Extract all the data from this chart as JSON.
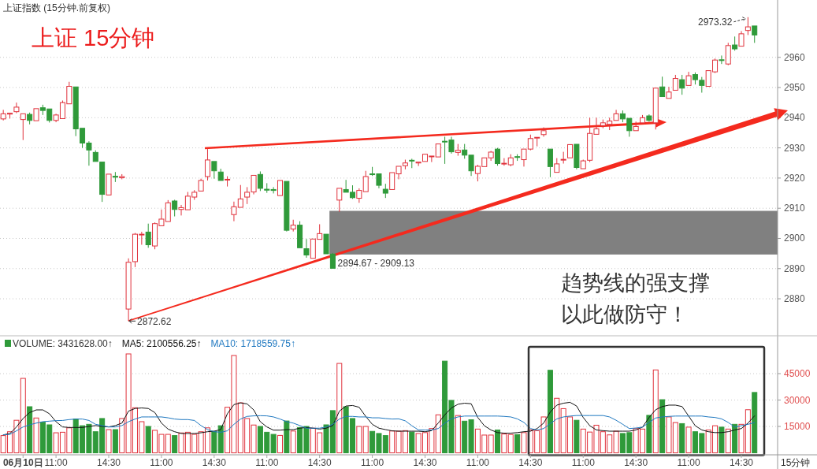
{
  "chart_data": [
    {
      "type": "candlestick",
      "title": "上证指数 (15分钟.前复权)",
      "subtitle": "上证 15分钟",
      "categories": [
        null,
        null,
        null,
        null,
        null,
        null,
        null,
        null,
        null,
        null,
        null,
        null,
        null,
        null,
        null,
        null,
        null,
        null,
        null,
        null,
        null,
        null,
        null,
        null,
        null,
        null,
        null,
        null,
        null,
        null,
        null,
        null,
        null,
        null,
        null,
        null,
        null,
        null,
        null,
        null,
        null,
        null,
        null,
        null,
        null,
        null,
        null,
        null,
        null,
        null,
        null,
        null,
        null,
        null,
        null,
        null,
        null,
        null,
        null,
        null,
        null,
        null,
        null,
        null,
        null,
        null,
        null,
        null,
        null,
        null,
        null,
        null,
        null,
        null,
        null,
        null,
        null,
        null,
        null,
        null,
        null,
        null,
        null,
        null,
        null,
        null,
        null,
        null,
        null,
        null,
        null,
        null,
        null,
        null,
        null,
        null,
        null,
        null,
        null,
        null,
        null,
        null,
        null,
        null,
        null,
        null,
        null,
        null,
        null,
        null,
        null,
        null,
        null,
        null,
        null,
        null,
        null,
        null
      ],
      "ohlc": [
        [
          2939.6,
          2942.6,
          2939.1,
          2941.3
        ],
        [
          2941.2,
          2941.7,
          2939.7,
          2941.5
        ],
        [
          2942.0,
          2945.0,
          2941.5,
          2943.5
        ],
        [
          2939.4,
          2941.5,
          2932.6,
          2941.3
        ],
        [
          2941.1,
          2941.7,
          2937.8,
          2939.1
        ],
        [
          2939.0,
          2943.2,
          2938.8,
          2943.0
        ],
        [
          2943.3,
          2944.3,
          2940.9,
          2942.4
        ],
        [
          2942.9,
          2943.0,
          2938.4,
          2939.1
        ],
        [
          2939.1,
          2941.3,
          2938.5,
          2940.9
        ],
        [
          2939.7,
          2945.7,
          2939.6,
          2945.0
        ],
        [
          2944.6,
          2951.9,
          2944.6,
          2950.4
        ],
        [
          2950.2,
          2950.2,
          2933.9,
          2936.3
        ],
        [
          2936.5,
          2936.5,
          2930.0,
          2931.6
        ],
        [
          2931.6,
          2932.2,
          2924.1,
          2929.3
        ],
        [
          2928.5,
          2929.2,
          2925.3,
          2925.5
        ],
        [
          2925.3,
          2925.3,
          2912.1,
          2914.6
        ],
        [
          2914.4,
          2921.3,
          2914.4,
          2921.3
        ],
        [
          2920.6,
          2922.0,
          2918.7,
          2920.3
        ],
        [
          2920.1,
          2921.3,
          2919.6,
          2920.5
        ],
        [
          2876.6,
          2893.4,
          2872.62,
          2892.1
        ],
        [
          2892.3,
          2901.8,
          2890.5,
          2901.4
        ],
        [
          2901.2,
          2902.2,
          2897.9,
          2901.4
        ],
        [
          2902.1,
          2904.9,
          2896.9,
          2897.9
        ],
        [
          2897.5,
          2905.3,
          2896.4,
          2904.9
        ],
        [
          2904.2,
          2909.6,
          2904.2,
          2906.4
        ],
        [
          2905.6,
          2912.7,
          2905.6,
          2911.8
        ],
        [
          2912.4,
          2912.8,
          2907.3,
          2909.6
        ],
        [
          2909.6,
          2911.1,
          2907.6,
          2910.2
        ],
        [
          2909.5,
          2915.4,
          2909.2,
          2914.0
        ],
        [
          2913.7,
          2916.0,
          2912.8,
          2915.3
        ],
        [
          2915.7,
          2919.8,
          2915.7,
          2919.2
        ],
        [
          2920.5,
          2929.6,
          2919.2,
          2926.0
        ],
        [
          2925.5,
          2925.7,
          2919.8,
          2922.4
        ],
        [
          2922.0,
          2923.1,
          2918.9,
          2919.2
        ],
        [
          2919.5,
          2920.6,
          2917.2,
          2919.6
        ],
        [
          2907.9,
          2912.2,
          2905.7,
          2910.5
        ],
        [
          2910.3,
          2917.7,
          2910.3,
          2913.1
        ],
        [
          2913.7,
          2917.0,
          2911.4,
          2915.3
        ],
        [
          2915.4,
          2920.9,
          2914.6,
          2920.9
        ],
        [
          2921.2,
          2922.2,
          2915.7,
          2916.6
        ],
        [
          2916.3,
          2918.3,
          2915.1,
          2916.0
        ],
        [
          2916.2,
          2917.0,
          2914.9,
          2915.9
        ],
        [
          2914.2,
          2919.2,
          2914.2,
          2919.2
        ],
        [
          2918.9,
          2918.9,
          2902.3,
          2902.7
        ],
        [
          2903.1,
          2906.2,
          2902.3,
          2904.4
        ],
        [
          2904.4,
          2905.7,
          2896.9,
          2896.9
        ],
        [
          2896.6,
          2899.8,
          2893.6,
          2894.5
        ],
        [
          2893.4,
          2899.8,
          2893.4,
          2899.8
        ],
        [
          2899.7,
          2904.7,
          2899.7,
          2901.6
        ],
        [
          2901.4,
          2901.4,
          2894.6,
          2894.9
        ],
        [
          2894.8,
          2895.2,
          2890.1,
          2890.1
        ],
        [
          2912.7,
          2916.6,
          2908.8,
          2916.6
        ],
        [
          2916.2,
          2919.4,
          2915.3,
          2915.3
        ],
        [
          2915.3,
          2917.6,
          2913.1,
          2913.5
        ],
        [
          2913.3,
          2916.6,
          2911.8,
          2915.9
        ],
        [
          2915.5,
          2922.4,
          2915.5,
          2920.5
        ],
        [
          2921.4,
          2923.7,
          2920.7,
          2921.2
        ],
        [
          2921.4,
          2921.4,
          2916.6,
          2917.6
        ],
        [
          2916.3,
          2918.1,
          2913.4,
          2915.0
        ],
        [
          2916.2,
          2922.1,
          2916.2,
          2921.8
        ],
        [
          2921.4,
          2923.9,
          2919.6,
          2923.9
        ],
        [
          2924.1,
          2926.1,
          2922.9,
          2925.0
        ],
        [
          2925.9,
          2926.4,
          2923.3,
          2925.7
        ],
        [
          2925.0,
          2925.3,
          2924.0,
          2925.3
        ],
        [
          2925.5,
          2927.9,
          2925.5,
          2927.9
        ],
        [
          2927.2,
          2927.4,
          2925.3,
          2927.3
        ],
        [
          2927.0,
          2931.3,
          2926.7,
          2931.3
        ],
        [
          2932.2,
          2933.7,
          2924.7,
          2932.1
        ],
        [
          2932.6,
          2933.7,
          2928.1,
          2928.7
        ],
        [
          2928.5,
          2931.3,
          2927.4,
          2929.2
        ],
        [
          2929.3,
          2931.3,
          2926.4,
          2927.6
        ],
        [
          2927.6,
          2927.6,
          2920.7,
          2922.4
        ],
        [
          2921.5,
          2924.4,
          2918.9,
          2923.9
        ],
        [
          2923.8,
          2926.7,
          2923.8,
          2926.7
        ],
        [
          2926.7,
          2929.0,
          2925.7,
          2928.6
        ],
        [
          2929.6,
          2930.0,
          2924.1,
          2924.8
        ],
        [
          2924.7,
          2926.6,
          2924.1,
          2924.9
        ],
        [
          2924.4,
          2927.9,
          2923.9,
          2926.7
        ],
        [
          2927.1,
          2927.9,
          2925.7,
          2926.9
        ],
        [
          2926.1,
          2929.6,
          2923.8,
          2929.6
        ],
        [
          2929.6,
          2934.4,
          2929.2,
          2933.1
        ],
        [
          2933.4,
          2933.7,
          2930.5,
          2933.5
        ],
        [
          2934.4,
          2936.8,
          2933.7,
          2935.7
        ],
        [
          2929.6,
          2929.6,
          2920.3,
          2923.8
        ],
        [
          2921.9,
          2926.6,
          2921.9,
          2924.7
        ],
        [
          2926.1,
          2928.7,
          2924.8,
          2926.2
        ],
        [
          2926.7,
          2931.3,
          2926.7,
          2931.1
        ],
        [
          2931.2,
          2931.2,
          2922.9,
          2923.5
        ],
        [
          2923.1,
          2926.1,
          2923.1,
          2925.7
        ],
        [
          2925.9,
          2940.0,
          2925.3,
          2934.8
        ],
        [
          2934.5,
          2940.0,
          2934.5,
          2936.3
        ],
        [
          2937.4,
          2939.4,
          2936.5,
          2938.3
        ],
        [
          2937.8,
          2940.0,
          2935.9,
          2938.9
        ],
        [
          2939.1,
          2942.6,
          2939.1,
          2941.3
        ],
        [
          2941.3,
          2942.4,
          2938.5,
          2939.6
        ],
        [
          2939.8,
          2939.8,
          2933.7,
          2935.7
        ],
        [
          2935.7,
          2938.7,
          2935.7,
          2937.1
        ],
        [
          2938.3,
          2940.9,
          2938.3,
          2940.0
        ],
        [
          2940.6,
          2941.1,
          2938.7,
          2939.1
        ],
        [
          2938.3,
          2949.8,
          2936.1,
          2949.8
        ],
        [
          2950.2,
          2953.6,
          2947.0,
          2947.0
        ],
        [
          2946.4,
          2950.2,
          2946.4,
          2948.5
        ],
        [
          2949.1,
          2954.2,
          2949.1,
          2953.0
        ],
        [
          2952.6,
          2954.2,
          2947.6,
          2949.8
        ],
        [
          2950.7,
          2955.2,
          2950.7,
          2953.9
        ],
        [
          2954.3,
          2955.0,
          2951.0,
          2952.6
        ],
        [
          2952.4,
          2953.5,
          2948.3,
          2950.7
        ],
        [
          2950.4,
          2955.6,
          2950.4,
          2955.6
        ],
        [
          2955.2,
          2959.6,
          2954.8,
          2959.1
        ],
        [
          2959.2,
          2960.6,
          2957.8,
          2959.0
        ],
        [
          2957.8,
          2964.8,
          2957.4,
          2963.9
        ],
        [
          2964.1,
          2966.9,
          2962.2,
          2962.8
        ],
        [
          2963.7,
          2968.7,
          2963.5,
          2967.8
        ],
        [
          2968.9,
          2973.32,
          2967.4,
          2970.1
        ],
        [
          2970.4,
          2970.4,
          2964.8,
          2967.4
        ],
        null,
        null,
        null
      ],
      "colors": [
        "#e0323c",
        "#e0323c",
        "#e0323c",
        "#e0323c",
        "#2f9a3a",
        "#e0323c",
        "#2f9a3a",
        "#2f9a3a",
        "#e0323c",
        "#e0323c",
        "#e0323c",
        "#2f9a3a",
        "#2f9a3a",
        "#2f9a3a",
        "#2f9a3a",
        "#2f9a3a",
        "#e0323c",
        "#2f9a3a",
        "#e0323c",
        "#e0323c",
        "#e0323c",
        "#e0323c",
        "#2f9a3a",
        "#e0323c",
        "#e0323c",
        "#e0323c",
        "#2f9a3a",
        "#e0323c",
        "#e0323c",
        "#e0323c",
        "#e0323c",
        "#e0323c",
        "#2f9a3a",
        "#2f9a3a",
        "#e0323c",
        "#e0323c",
        "#e0323c",
        "#e0323c",
        "#e0323c",
        "#2f9a3a",
        "#2f9a3a",
        "#2f9a3a",
        "#e0323c",
        "#2f9a3a",
        "#e0323c",
        "#2f9a3a",
        "#2f9a3a",
        "#e0323c",
        "#e0323c",
        "#2f9a3a",
        "#2f9a3a",
        "#e0323c",
        "#2f9a3a",
        "#2f9a3a",
        "#e0323c",
        "#e0323c",
        "#2f9a3a",
        "#2f9a3a",
        "#2f9a3a",
        "#e0323c",
        "#e0323c",
        "#e0323c",
        "#2f9a3a",
        "#e0323c",
        "#e0323c",
        "#e0323c",
        "#e0323c",
        "#2f9a3a",
        "#2f9a3a",
        "#e0323c",
        "#2f9a3a",
        "#2f9a3a",
        "#e0323c",
        "#e0323c",
        "#e0323c",
        "#2f9a3a",
        "#e0323c",
        "#e0323c",
        "#2f9a3a",
        "#e0323c",
        "#e0323c",
        "#e0323c",
        "#e0323c",
        "#2f9a3a",
        "#e0323c",
        "#e0323c",
        "#e0323c",
        "#2f9a3a",
        "#e0323c",
        "#e0323c",
        "#e0323c",
        "#e0323c",
        "#e0323c",
        "#e0323c",
        "#2f9a3a",
        "#2f9a3a",
        "#e0323c",
        "#e0323c",
        "#2f9a3a",
        "#e0323c",
        "#2f9a3a",
        "#e0323c",
        "#e0323c",
        "#2f9a3a",
        "#e0323c",
        "#2f9a3a",
        "#2f9a3a",
        "#e0323c",
        "#e0323c",
        "#2f9a3a",
        "#e0323c",
        "#2f9a3a",
        "#e0323c",
        "#e0323c",
        "#2f9a3a",
        null,
        null,
        null
      ],
      "bands": [
        {
          "axis": "y",
          "from": 2894.67,
          "to": 2909.13,
          "label": "2894.67 - 2909.13",
          "color": "#808080"
        }
      ],
      "annotations": [
        "2872.62",
        "2973.32",
        "趋势线的强支撑",
        "以此做防守！"
      ],
      "ylim": [
        2868,
        2979
      ],
      "yticks": [
        2880,
        2890,
        2900,
        2910,
        2920,
        2930,
        2940,
        2950,
        2960
      ],
      "grid": "y",
      "tick_labels": "y"
    },
    {
      "type": "bar",
      "categories": [
        null,
        null,
        null,
        "06月10日",
        null,
        null,
        null,
        null,
        "11:00",
        null,
        null,
        null,
        null,
        null,
        null,
        null,
        "14:30",
        null,
        null,
        null,
        null,
        null,
        null,
        null,
        "11:00",
        null,
        null,
        null,
        null,
        null,
        null,
        null,
        "14:30",
        null,
        null,
        null,
        null,
        null,
        null,
        null,
        "11:00",
        null,
        null,
        null,
        null,
        null,
        null,
        null,
        "14:30",
        null,
        null,
        null,
        null,
        null,
        null,
        null,
        "11:00",
        null,
        null,
        null,
        null,
        null,
        null,
        null,
        "14:30",
        null,
        null,
        null,
        null,
        null,
        null,
        null,
        "11:00",
        null,
        null,
        null,
        null,
        null,
        null,
        null,
        "14:30",
        null,
        null,
        null,
        null,
        null,
        null,
        null,
        "11:00",
        null,
        null,
        null,
        null,
        null,
        null,
        null,
        "14:30",
        null,
        null,
        null,
        null,
        null,
        null,
        null,
        "11:00",
        null,
        null,
        null,
        null,
        null,
        null,
        null,
        "14:30",
        null,
        null,
        null,
        null,
        null
      ],
      "series": [
        {
          "name": "VOLUME: 3431628.00↑",
          "colors": [
            "#e0323c",
            "#e0323c",
            "#e0323c",
            "#e0323c",
            "#2f9a3a",
            "#e0323c",
            "#2f9a3a",
            "#2f9a3a",
            "#e0323c",
            "#e0323c",
            "#e0323c",
            "#2f9a3a",
            "#2f9a3a",
            "#2f9a3a",
            "#2f9a3a",
            "#2f9a3a",
            "#e0323c",
            "#2f9a3a",
            "#e0323c",
            "#e0323c",
            "#e0323c",
            "#e0323c",
            "#2f9a3a",
            "#e0323c",
            "#e0323c",
            "#e0323c",
            "#2f9a3a",
            "#e0323c",
            "#e0323c",
            "#e0323c",
            "#e0323c",
            "#e0323c",
            "#2f9a3a",
            "#2f9a3a",
            "#e0323c",
            "#e0323c",
            "#e0323c",
            "#e0323c",
            "#e0323c",
            "#2f9a3a",
            "#2f9a3a",
            "#2f9a3a",
            "#e0323c",
            "#2f9a3a",
            "#e0323c",
            "#2f9a3a",
            "#2f9a3a",
            "#e0323c",
            "#e0323c",
            "#2f9a3a",
            "#2f9a3a",
            "#e0323c",
            "#2f9a3a",
            "#2f9a3a",
            "#e0323c",
            "#e0323c",
            "#2f9a3a",
            "#2f9a3a",
            "#2f9a3a",
            "#e0323c",
            "#e0323c",
            "#e0323c",
            "#2f9a3a",
            "#e0323c",
            "#e0323c",
            "#e0323c",
            "#e0323c",
            "#2f9a3a",
            "#2f9a3a",
            "#e0323c",
            "#2f9a3a",
            "#2f9a3a",
            "#e0323c",
            "#e0323c",
            "#e0323c",
            "#2f9a3a",
            "#e0323c",
            "#e0323c",
            "#2f9a3a",
            "#e0323c",
            "#e0323c",
            "#e0323c",
            "#e0323c",
            "#2f9a3a",
            "#e0323c",
            "#e0323c",
            "#e0323c",
            "#2f9a3a",
            "#e0323c",
            "#e0323c",
            "#e0323c",
            "#e0323c",
            "#e0323c",
            "#e0323c",
            "#2f9a3a",
            "#2f9a3a",
            "#e0323c",
            "#e0323c",
            "#2f9a3a",
            "#e0323c",
            "#2f9a3a",
            "#e0323c",
            "#e0323c",
            "#2f9a3a",
            "#e0323c",
            "#2f9a3a",
            "#2f9a3a",
            "#e0323c",
            "#e0323c",
            "#2f9a3a",
            "#e0323c",
            "#2f9a3a",
            "#e0323c",
            "#e0323c",
            "#2f9a3a",
            null,
            null,
            null
          ],
          "values": [
            9800,
            12000,
            18500,
            42300,
            26200,
            19800,
            17400,
            15900,
            11400,
            11700,
            14200,
            19200,
            15400,
            16200,
            12000,
            19500,
            13200,
            13200,
            19500,
            56200,
            25600,
            17700,
            15000,
            12800,
            10500,
            10500,
            9800,
            11300,
            11700,
            10500,
            12000,
            14200,
            12200,
            15400,
            25900,
            55300,
            28400,
            19500,
            15800,
            15000,
            11700,
            10500,
            9900,
            18100,
            12400,
            14400,
            15000,
            14000,
            11400,
            15900,
            24000,
            50800,
            26200,
            19500,
            15000,
            15000,
            12200,
            11000,
            9800,
            12400,
            12300,
            12600,
            11800,
            11000,
            11500,
            13800,
            21600,
            52100,
            29800,
            21200,
            18000,
            18800,
            13500,
            10100,
            10100,
            13000,
            10700,
            10400,
            10400,
            11500,
            13000,
            12600,
            20400,
            46900,
            31000,
            25100,
            20400,
            18500,
            13500,
            11800,
            15700,
            12000,
            10200,
            12300,
            11000,
            11500,
            13800,
            13500,
            21300,
            47100,
            30200,
            20400,
            17200,
            16600,
            14600,
            12000,
            11000,
            13000,
            15400,
            14600,
            13500,
            16200,
            16200,
            24500,
            34300,
            null,
            null,
            null
          ]
        },
        {
          "type": "line",
          "name": "MA5: 2100556.25↑",
          "color": "#111111",
          "values": [
            10200,
            11000,
            14700,
            19500,
            22900,
            24400,
            24400,
            22200,
            17700,
            14700,
            14400,
            14400,
            14400,
            15000,
            15500,
            15000,
            14700,
            15500,
            16900,
            23700,
            25200,
            25500,
            25200,
            22900,
            16900,
            13500,
            12000,
            11000,
            11000,
            11000,
            11400,
            12000,
            12300,
            13200,
            22200,
            27400,
            28400,
            27800,
            24400,
            17700,
            14700,
            12900,
            12900,
            13200,
            13200,
            14000,
            14400,
            14000,
            13500,
            14000,
            15500,
            23700,
            26600,
            26900,
            25900,
            20700,
            16200,
            14000,
            13200,
            12500,
            12300,
            12300,
            12300,
            12300,
            12000,
            12600,
            16900,
            21600,
            25500,
            27600,
            28200,
            27900,
            20100,
            15400,
            13000,
            11500,
            11200,
            11200,
            11500,
            12000,
            12300,
            13800,
            16900,
            23200,
            27100,
            28200,
            28700,
            26600,
            20100,
            15400,
            13000,
            12600,
            12300,
            12300,
            12300,
            12300,
            13000,
            14600,
            20100,
            24500,
            26300,
            27100,
            27100,
            26300,
            20900,
            15400,
            13000,
            12000,
            11500,
            11500,
            12000,
            13000,
            13800,
            16900,
            21000,
            null,
            null,
            null
          ]
        },
        {
          "type": "line",
          "name": "MA10: 1718559.75↑",
          "color": "#1f78c0",
          "values": [
            10200,
            10500,
            12500,
            14700,
            15900,
            16900,
            17700,
            18000,
            18300,
            18400,
            18900,
            19200,
            19200,
            18400,
            16200,
            15500,
            14700,
            14700,
            15500,
            17700,
            19200,
            20400,
            20400,
            20400,
            20400,
            19900,
            19200,
            18900,
            18900,
            18400,
            15500,
            13200,
            12000,
            11700,
            12500,
            16200,
            19200,
            20700,
            21000,
            21100,
            21000,
            20400,
            19200,
            17700,
            16900,
            15500,
            14000,
            14000,
            14000,
            14700,
            16200,
            19200,
            20700,
            20700,
            20400,
            20400,
            19900,
            19900,
            19500,
            19200,
            19300,
            18200,
            15400,
            13000,
            13000,
            13000,
            13800,
            16900,
            19300,
            20400,
            20900,
            20900,
            20900,
            20900,
            20900,
            20900,
            20700,
            20400,
            19300,
            17300,
            13800,
            13000,
            13800,
            16600,
            19300,
            20400,
            20900,
            21200,
            21200,
            21200,
            21200,
            21200,
            20400,
            18500,
            16200,
            13800,
            14100,
            14600,
            17300,
            19800,
            20400,
            20700,
            20900,
            20900,
            20900,
            20900,
            20900,
            20400,
            20100,
            19300,
            17300,
            14600,
            15400,
            16200,
            17200,
            null,
            null,
            null
          ]
        }
      ],
      "annotations": [
        "15分钟"
      ],
      "ylim": [
        0,
        65600
      ],
      "yticks": [
        15000,
        30000,
        45000
      ],
      "grid": "y",
      "legend": "top left"
    }
  ]
}
